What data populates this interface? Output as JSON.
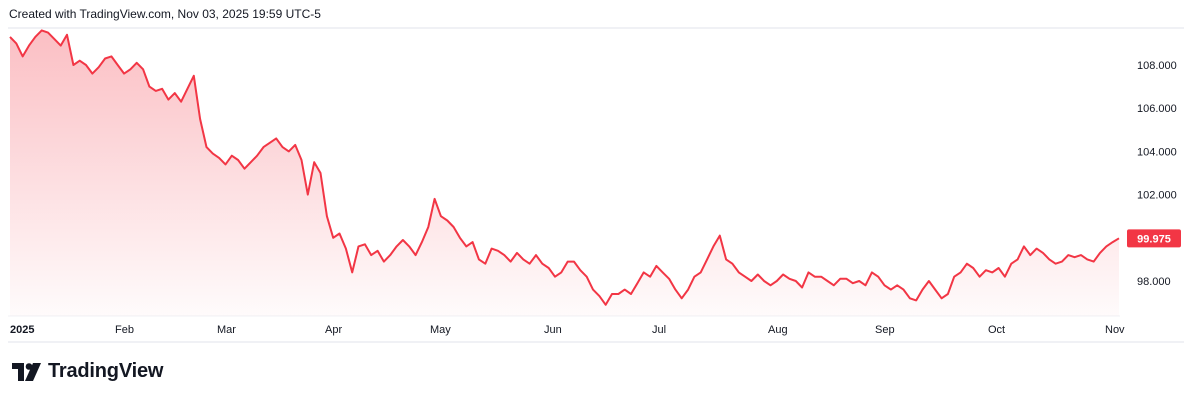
{
  "header": {
    "credit": "Created with TradingView.com, Nov 03, 2025 19:59 UTC-5"
  },
  "footer": {
    "brand": "TradingView"
  },
  "colors": {
    "line": "#f23645",
    "fill_top": "#f23645",
    "badge": "#f23645",
    "grid": "#e0e3eb"
  },
  "chart_data": {
    "type": "area",
    "x_labels": [
      "2025",
      "Feb",
      "Mar",
      "Apr",
      "May",
      "Jun",
      "Jul",
      "Aug",
      "Sep",
      "Oct",
      "Nov"
    ],
    "y_ticks": [
      "108.000",
      "106.000",
      "104.000",
      "102.000",
      "98.000"
    ],
    "ylim": [
      96.8,
      109.8
    ],
    "last_value": "99.975",
    "series": [
      {
        "values": [
          109.3,
          109.0,
          108.4,
          108.9,
          109.3,
          109.6,
          109.5,
          109.2,
          108.9,
          109.4,
          108.0,
          108.2,
          108.0,
          107.6,
          107.9,
          108.3,
          108.4,
          108.0,
          107.6,
          107.8,
          108.1,
          107.8,
          107.0,
          106.8,
          106.9,
          106.4,
          106.7,
          106.3,
          106.9,
          107.5,
          105.5,
          104.2,
          103.9,
          103.7,
          103.4,
          103.8,
          103.6,
          103.2,
          103.5,
          103.8,
          104.2,
          104.4,
          104.6,
          104.2,
          104.0,
          104.3,
          103.6,
          102.0,
          103.5,
          103.0,
          101.0,
          100.0,
          100.2,
          99.5,
          98.4,
          99.6,
          99.7,
          99.2,
          99.4,
          98.9,
          99.2,
          99.6,
          99.9,
          99.6,
          99.2,
          99.8,
          100.5,
          101.8,
          101.0,
          100.8,
          100.5,
          100.0,
          99.6,
          99.8,
          99.0,
          98.8,
          99.5,
          99.4,
          99.2,
          98.9,
          99.3,
          99.0,
          98.8,
          99.2,
          98.8,
          98.6,
          98.2,
          98.4,
          98.9,
          98.9,
          98.5,
          98.2,
          97.6,
          97.3,
          96.9,
          97.4,
          97.4,
          97.6,
          97.4,
          97.9,
          98.4,
          98.2,
          98.7,
          98.4,
          98.1,
          97.6,
          97.2,
          97.6,
          98.2,
          98.4,
          99.0,
          99.6,
          100.1,
          99.0,
          98.8,
          98.4,
          98.2,
          98.0,
          98.3,
          98.0,
          97.8,
          98.0,
          98.3,
          98.1,
          98.0,
          97.7,
          98.4,
          98.2,
          98.2,
          98.0,
          97.8,
          98.1,
          98.1,
          97.9,
          98.0,
          97.8,
          98.4,
          98.2,
          97.8,
          97.6,
          97.8,
          97.6,
          97.2,
          97.1,
          97.6,
          98.0,
          97.6,
          97.2,
          97.4,
          98.2,
          98.4,
          98.8,
          98.6,
          98.2,
          98.5,
          98.4,
          98.6,
          98.2,
          98.8,
          99.0,
          99.6,
          99.2,
          99.5,
          99.3,
          99.0,
          98.8,
          98.9,
          99.2,
          99.1,
          99.2,
          99.0,
          98.9,
          99.3,
          99.6,
          99.8,
          99.975
        ]
      }
    ]
  }
}
